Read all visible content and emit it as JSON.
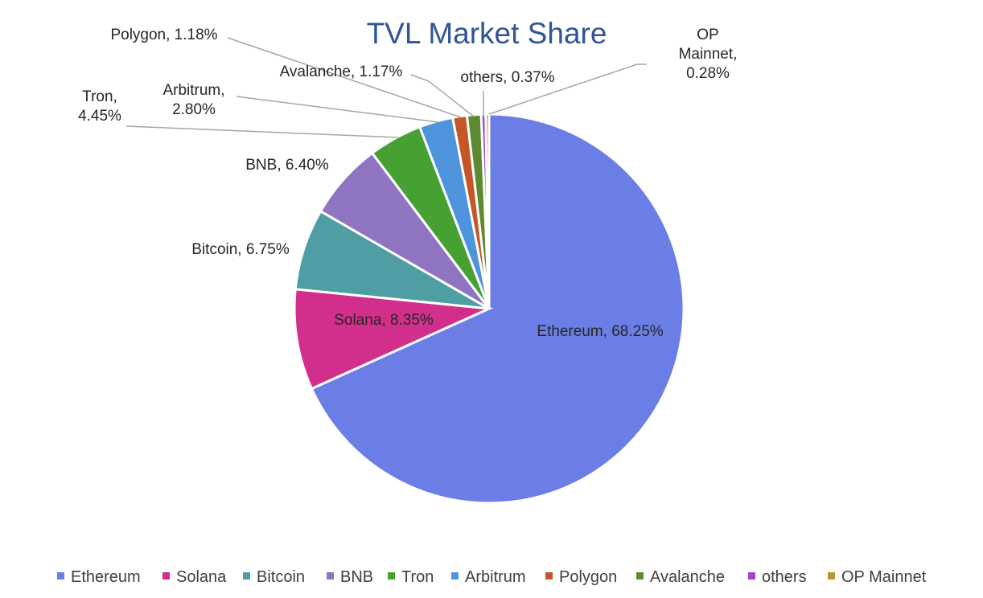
{
  "chart_data": {
    "type": "pie",
    "title": "TVL Market Share",
    "series": [
      {
        "name": "Ethereum",
        "value": 68.25,
        "label": "Ethereum, 68.25%",
        "color": "#6b7ee6"
      },
      {
        "name": "Solana",
        "value": 8.35,
        "label": "Solana, 8.35%",
        "color": "#d22f8c"
      },
      {
        "name": "Bitcoin",
        "value": 6.75,
        "label": "Bitcoin, 6.75%",
        "color": "#4f9ea3"
      },
      {
        "name": "BNB",
        "value": 6.4,
        "label": "BNB, 6.40%",
        "color": "#8e74c1"
      },
      {
        "name": "Tron",
        "value": 4.45,
        "label": "Tron, 4.45%",
        "color": "#47a132"
      },
      {
        "name": "Arbitrum",
        "value": 2.8,
        "label": "Arbitrum, 2.80%",
        "color": "#4d94dd"
      },
      {
        "name": "Polygon",
        "value": 1.18,
        "label": "Polygon, 1.18%",
        "color": "#c55627"
      },
      {
        "name": "Avalanche",
        "value": 1.17,
        "label": "Avalanche, 1.17%",
        "color": "#5b8a31"
      },
      {
        "name": "others",
        "value": 0.37,
        "label": "others, 0.37%",
        "color": "#a743c9"
      },
      {
        "name": "OP Mainnet",
        "value": 0.28,
        "label": "OP Mainnet, 0.28%",
        "color": "#b59a2b"
      }
    ],
    "legend_position": "bottom"
  }
}
